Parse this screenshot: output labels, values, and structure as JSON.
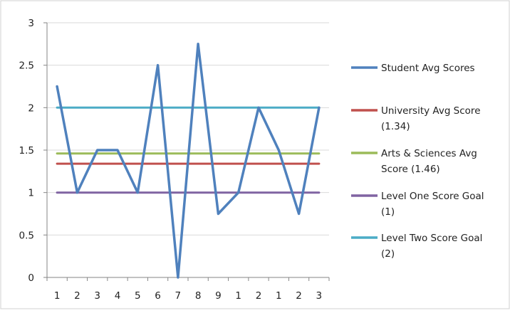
{
  "chart_data": {
    "type": "line",
    "categories": [
      "1",
      "2",
      "3",
      "4",
      "5",
      "6",
      "7",
      "8",
      "9",
      "1",
      "2",
      "1",
      "2",
      "3"
    ],
    "ylim": [
      0,
      3
    ],
    "yticks": [
      "0",
      "0.5",
      "1",
      "1.5",
      "2",
      "2.5",
      "3"
    ],
    "grid": "horizontal",
    "legend_position": "right",
    "title": "",
    "xlabel": "",
    "ylabel": "",
    "series": [
      {
        "name": "Student Avg Scores",
        "color": "#4f81bd",
        "values": [
          2.25,
          1.0,
          1.5,
          1.5,
          1.0,
          2.5,
          0.0,
          2.75,
          0.75,
          1.0,
          2.0,
          1.5,
          0.75,
          2.0
        ]
      },
      {
        "name": "University Avg Score (1.34)",
        "color": "#c0504d",
        "values": [
          1.34,
          1.34,
          1.34,
          1.34,
          1.34,
          1.34,
          1.34,
          1.34,
          1.34,
          1.34,
          1.34,
          1.34,
          1.34,
          1.34
        ]
      },
      {
        "name": "Arts & Sciences Avg Score (1.46)",
        "color": "#9bbb59",
        "values": [
          1.46,
          1.46,
          1.46,
          1.46,
          1.46,
          1.46,
          1.46,
          1.46,
          1.46,
          1.46,
          1.46,
          1.46,
          1.46,
          1.46
        ]
      },
      {
        "name": "Level One Score Goal (1)",
        "color": "#8064a2",
        "values": [
          1,
          1,
          1,
          1,
          1,
          1,
          1,
          1,
          1,
          1,
          1,
          1,
          1,
          1
        ]
      },
      {
        "name": "Level Two Score Goal (2)",
        "color": "#4bacc6",
        "values": [
          2,
          2,
          2,
          2,
          2,
          2,
          2,
          2,
          2,
          2,
          2,
          2,
          2,
          2
        ]
      }
    ],
    "legend_lines": [
      [
        "Student Avg Scores"
      ],
      [
        "University Avg Score",
        "(1.34)"
      ],
      [
        "Arts & Sciences Avg",
        "Score (1.46)"
      ],
      [
        "Level One Score Goal",
        "(1)"
      ],
      [
        "Level Two Score Goal",
        "(2)"
      ]
    ]
  }
}
